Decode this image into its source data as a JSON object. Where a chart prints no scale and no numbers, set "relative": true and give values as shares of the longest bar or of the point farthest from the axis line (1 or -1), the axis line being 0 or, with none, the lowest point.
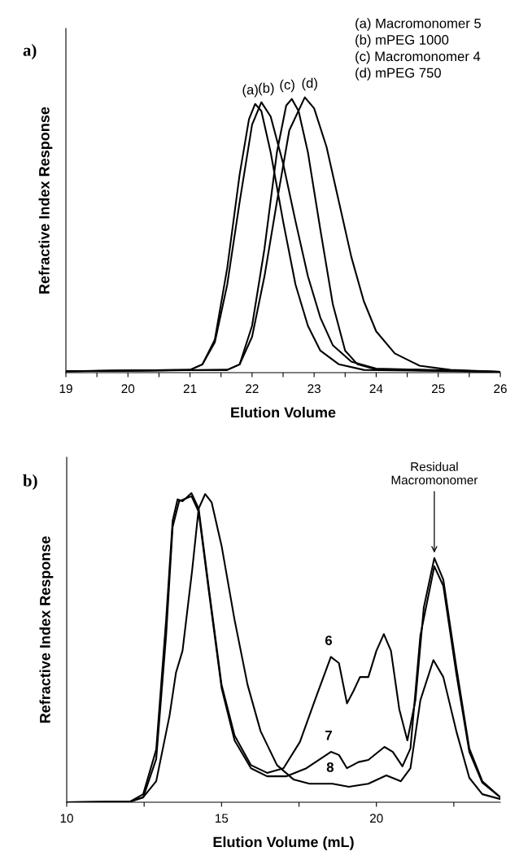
{
  "chart_data": [
    {
      "type": "line",
      "title": "a)",
      "xlabel": "Elution Volume",
      "ylabel": "Refractive Index Response",
      "relative": true,
      "xlim": [
        19,
        26
      ],
      "xticks": [
        19,
        {
          "value": 19.5,
          "label": null
        },
        20,
        {
          "value": 20.5,
          "label": null
        },
        21,
        {
          "value": 21.5,
          "label": null
        },
        22,
        {
          "value": 22.5,
          "label": null
        },
        23,
        {
          "value": 23.5,
          "label": null
        },
        24,
        {
          "value": 24.5,
          "label": null
        },
        25,
        {
          "value": 25.5,
          "label": null
        },
        26
      ],
      "grid": false,
      "legend": false,
      "marker": "none",
      "line_style": "solid",
      "annotations": [
        "(a) Macromonomer 5",
        "(b) mPEG 1000",
        "(c) Macromonomer 4",
        "(d) mPEG 750",
        {
          "text": "(a)",
          "x": 22.05,
          "y": 0.976
        },
        {
          "text": "(b)",
          "x": 22.15,
          "y": 0.982
        },
        {
          "text": "(c)",
          "x": 22.64,
          "y": 0.994
        },
        {
          "text": "(d)",
          "x": 22.85,
          "y": 1.0
        }
      ],
      "series": [
        {
          "color": "#000000",
          "x": [
            19,
            21,
            21.2,
            21.4,
            21.6,
            21.8,
            21.95,
            22.05,
            22.15,
            22.3,
            22.5,
            22.7,
            22.9,
            23.1,
            23.4,
            23.8,
            26
          ],
          "values": [
            0.005,
            0.01,
            0.03,
            0.12,
            0.38,
            0.72,
            0.92,
            0.976,
            0.95,
            0.8,
            0.55,
            0.32,
            0.17,
            0.08,
            0.03,
            0.01,
            0.003
          ]
        },
        {
          "color": "#000000",
          "x": [
            19,
            21,
            21.2,
            21.4,
            21.6,
            21.8,
            22.0,
            22.15,
            22.3,
            22.5,
            22.7,
            22.9,
            23.1,
            23.3,
            23.6,
            24,
            26
          ],
          "values": [
            0.005,
            0.01,
            0.03,
            0.11,
            0.32,
            0.62,
            0.9,
            0.982,
            0.93,
            0.76,
            0.55,
            0.35,
            0.2,
            0.1,
            0.04,
            0.015,
            0.003
          ]
        },
        {
          "color": "#000000",
          "x": [
            19,
            21.6,
            21.8,
            22.0,
            22.2,
            22.4,
            22.55,
            22.64,
            22.75,
            22.9,
            23.1,
            23.3,
            23.5,
            23.7,
            24,
            26
          ],
          "values": [
            0.005,
            0.01,
            0.03,
            0.17,
            0.45,
            0.8,
            0.97,
            0.994,
            0.95,
            0.8,
            0.52,
            0.25,
            0.08,
            0.03,
            0.012,
            0.003
          ]
        },
        {
          "color": "#000000",
          "x": [
            19,
            21.6,
            21.8,
            22.0,
            22.2,
            22.4,
            22.6,
            22.85,
            23.0,
            23.2,
            23.4,
            23.6,
            23.8,
            24.0,
            24.3,
            24.7,
            25.2,
            26
          ],
          "values": [
            0.005,
            0.01,
            0.03,
            0.13,
            0.35,
            0.62,
            0.88,
            1.0,
            0.96,
            0.82,
            0.62,
            0.42,
            0.26,
            0.15,
            0.07,
            0.025,
            0.01,
            0.003
          ]
        }
      ]
    },
    {
      "type": "line",
      "title": "b)",
      "xlabel": "Elution Volume (mL)",
      "ylabel": "Refractive Index Response",
      "relative": true,
      "xlim": [
        10,
        24
      ],
      "xticks": [
        10,
        {
          "value": 12.5,
          "label": null
        },
        15,
        {
          "value": 17.5,
          "label": null
        },
        20,
        {
          "value": 22.5,
          "label": null
        }
      ],
      "grid": false,
      "legend": false,
      "marker": "none",
      "line_style": "solid",
      "annotations": [
        {
          "text": "Residual\nMacromonomer",
          "x": 21.87,
          "y": 0.8
        },
        {
          "text": "6",
          "x": 18.53,
          "y": 0.47
        },
        {
          "text": "7",
          "x": 18.53,
          "y": 0.163
        },
        {
          "text": "8",
          "x": 18.58,
          "y": 0.06
        }
      ],
      "series": [
        {
          "color": "#000000",
          "x": [
            10,
            12.05,
            12.47,
            12.89,
            13.21,
            13.42,
            13.58,
            13.74,
            14.03,
            14.26,
            14.58,
            15.0,
            15.42,
            15.95,
            16.47,
            17.0,
            17.53,
            18.05,
            18.53,
            18.79,
            19.05,
            19.26,
            19.47,
            19.74,
            20.0,
            20.24,
            20.47,
            20.74,
            21.0,
            21.26,
            21.53,
            21.87,
            22.16,
            22.58,
            23.0,
            23.42,
            24.0
          ],
          "values": [
            0,
            0.002,
            0.026,
            0.17,
            0.59,
            0.91,
            0.98,
            0.974,
            1.0,
            0.95,
            0.7,
            0.38,
            0.216,
            0.12,
            0.095,
            0.11,
            0.195,
            0.34,
            0.47,
            0.45,
            0.32,
            0.36,
            0.405,
            0.405,
            0.49,
            0.544,
            0.49,
            0.3,
            0.2,
            0.33,
            0.63,
            0.79,
            0.72,
            0.437,
            0.174,
            0.068,
            0.016
          ]
        },
        {
          "color": "#000000",
          "x": [
            10,
            12.05,
            12.47,
            12.89,
            13.21,
            13.42,
            13.63,
            14.03,
            14.26,
            14.58,
            15.0,
            15.42,
            15.95,
            16.47,
            17.1,
            17.74,
            18.53,
            18.79,
            19.05,
            19.42,
            19.74,
            20.26,
            20.53,
            20.84,
            21.1,
            21.42,
            21.87,
            22.16,
            22.58,
            23.0,
            23.42,
            24.0
          ],
          "values": [
            0,
            0.002,
            0.016,
            0.14,
            0.54,
            0.89,
            0.974,
            0.99,
            0.94,
            0.69,
            0.37,
            0.2,
            0.11,
            0.084,
            0.084,
            0.11,
            0.163,
            0.153,
            0.11,
            0.13,
            0.137,
            0.179,
            0.163,
            0.116,
            0.174,
            0.54,
            0.763,
            0.7,
            0.416,
            0.163,
            0.063,
            0.016
          ]
        },
        {
          "color": "#000000",
          "x": [
            10,
            12.05,
            12.47,
            12.89,
            13.32,
            13.53,
            13.74,
            14.05,
            14.26,
            14.47,
            14.68,
            15.0,
            15.42,
            15.84,
            16.26,
            16.79,
            17.32,
            17.84,
            18.58,
            19.11,
            19.74,
            20.32,
            20.79,
            21.1,
            21.42,
            21.84,
            22.16,
            22.58,
            23.0,
            23.42,
            24.0
          ],
          "values": [
            0,
            0.002,
            0.016,
            0.068,
            0.28,
            0.42,
            0.49,
            0.75,
            0.95,
            0.997,
            0.97,
            0.83,
            0.59,
            0.38,
            0.23,
            0.12,
            0.074,
            0.06,
            0.06,
            0.05,
            0.06,
            0.087,
            0.068,
            0.11,
            0.33,
            0.46,
            0.405,
            0.23,
            0.079,
            0.026,
            0.01
          ]
        }
      ]
    }
  ]
}
